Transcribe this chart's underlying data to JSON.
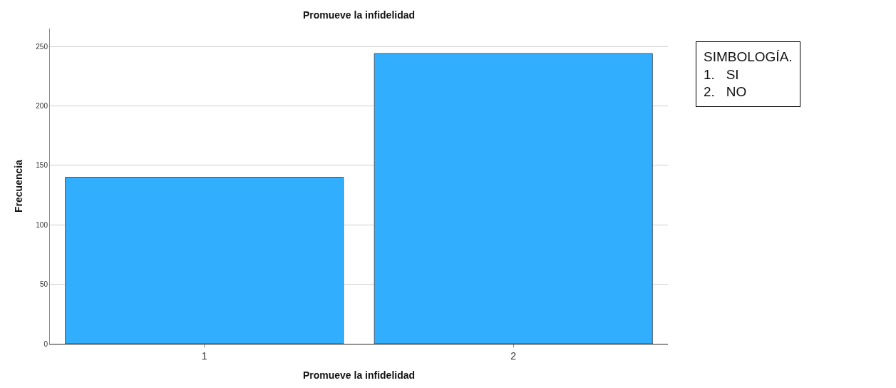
{
  "chart_data": {
    "type": "bar",
    "title": "Promueve la infidelidad",
    "xlabel": "Promueve la infidelidad",
    "ylabel": "Frecuencia",
    "categories": [
      "1",
      "2"
    ],
    "values": [
      140,
      244
    ],
    "color": "#31aefe",
    "ylim": [
      0,
      265
    ],
    "yticks": [
      0,
      50,
      100,
      150,
      200,
      250
    ],
    "grid": "y",
    "annotations": [
      "SIMBOLOGÍA.\n1.   SI\n2.   NO"
    ]
  }
}
